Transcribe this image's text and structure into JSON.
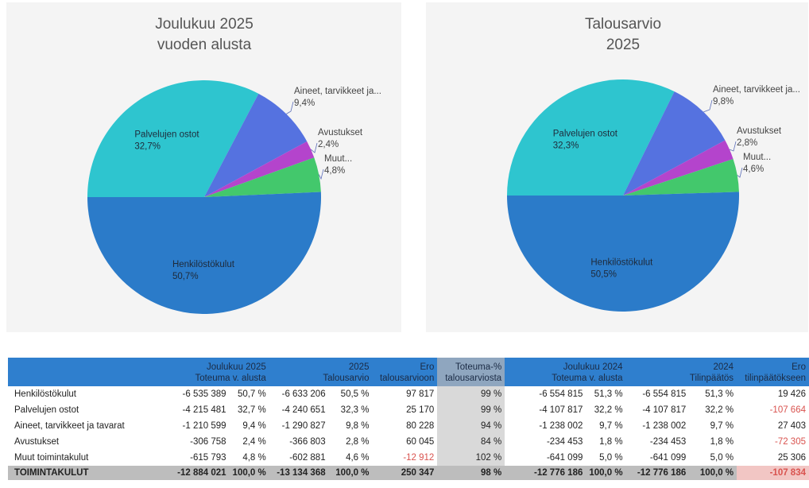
{
  "chart_data": [
    {
      "type": "pie",
      "title": [
        "Joulukuu 2025",
        "vuoden alusta"
      ],
      "categories": [
        "Palvelujen ostot",
        "Aineet, tarvikkeet ja...",
        "Avustukset",
        "Muut...",
        "Henkilöstökulut"
      ],
      "values": [
        32.7,
        9.4,
        2.4,
        4.8,
        50.7
      ],
      "value_labels": [
        "32,7%",
        "9,4%",
        "2,4%",
        "4,8%",
        "50,7%"
      ],
      "colors": [
        "#2ec5cf",
        "#5572e0",
        "#b444cc",
        "#43c86c",
        "#2b7bc9"
      ]
    },
    {
      "type": "pie",
      "title": [
        "Talousarvio",
        "2025"
      ],
      "categories": [
        "Palvelujen ostot",
        "Aineet, tarvikkeet ja...",
        "Avustukset",
        "Muut...",
        "Henkilöstökulut"
      ],
      "values": [
        32.3,
        9.8,
        2.8,
        4.6,
        50.5
      ],
      "value_labels": [
        "32,3%",
        "9,8%",
        "2,8%",
        "4,6%",
        "50,5%"
      ],
      "colors": [
        "#2ec5cf",
        "#5572e0",
        "#b444cc",
        "#43c86c",
        "#2b7bc9"
      ]
    }
  ],
  "table": {
    "header": [
      [
        "Joulukuu 2025",
        "Toteuma v. alusta"
      ],
      [
        "2025",
        "Talousarvio"
      ],
      [
        "Ero",
        "talousarvioon"
      ],
      [
        "Toteuma-%",
        "talousarviosta"
      ],
      [
        "Joulukuu 2024",
        "Toteuma v. alusta"
      ],
      [
        "2024",
        "Tilinpäätös"
      ],
      [
        "Ero",
        "tilinpäätökseen"
      ]
    ],
    "rows": [
      [
        "Henkilöstökulut",
        "-6 535 389",
        "50,7 %",
        "-6 633 206",
        "50,5 %",
        "97 817",
        "99 %",
        "-6 554 815",
        "51,3 %",
        "-6 554 815",
        "51,3 %",
        "19 426"
      ],
      [
        "Palvelujen ostot",
        "-4 215 481",
        "32,7 %",
        "-4 240 651",
        "32,3 %",
        "25 170",
        "99 %",
        "-4 107 817",
        "32,2 %",
        "-4 107 817",
        "32,2 %",
        "-107 664"
      ],
      [
        "Aineet, tarvikkeet ja tavarat",
        "-1 210 599",
        "9,4 %",
        "-1 290 827",
        "9,8 %",
        "80 228",
        "94 %",
        "-1 238 002",
        "9,7 %",
        "-1 238 002",
        "9,7 %",
        "27 403"
      ],
      [
        "Avustukset",
        "-306 758",
        "2,4 %",
        "-366 803",
        "2,8 %",
        "60 045",
        "84 %",
        "-234 453",
        "1,8 %",
        "-234 453",
        "1,8 %",
        "-72 305"
      ],
      [
        "Muut toimintakulut",
        "-615 793",
        "4,8 %",
        "-602 881",
        "4,6 %",
        "-12 912",
        "102 %",
        "-641 099",
        "5,0 %",
        "-641 099",
        "5,0 %",
        "25 306"
      ],
      [
        "TOIMINTAKULUT",
        "-12 884 021",
        "100,0 %",
        "-13 134 368",
        "100,0 %",
        "250 347",
        "98 %",
        "-12 776 186",
        "100,0 %",
        "-12 776 186",
        "100,0 %",
        "-107 834"
      ]
    ]
  }
}
